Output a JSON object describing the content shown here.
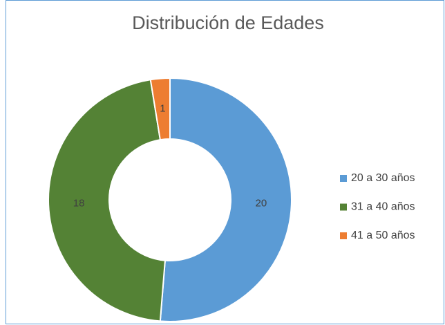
{
  "chart_data": {
    "type": "pie",
    "title": "Distribución de Edades",
    "categories": [
      "20 a 30 años",
      "31 a 40 años",
      "41 a 50 años"
    ],
    "values": [
      20,
      18,
      1
    ],
    "colors": [
      "#5b9bd5",
      "#548235",
      "#ed7d31"
    ],
    "donut": true,
    "legend": "right"
  }
}
